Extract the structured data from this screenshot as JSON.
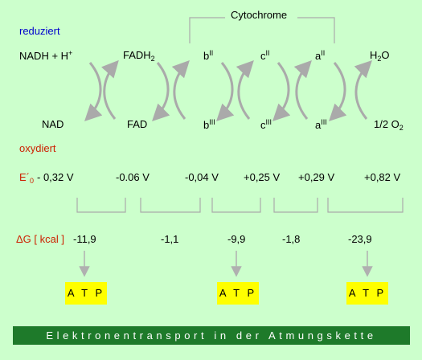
{
  "labels": {
    "cytochrome": "Cytochrome",
    "reduced": "reduziert",
    "oxidized": "oxydiert",
    "caption": "Elektronentransport in der Atmungskette"
  },
  "species_top": {
    "nadh": "NADH + H",
    "nadh_sup": "+",
    "fadh": "FADH",
    "fadh_sub": "2",
    "b": "b",
    "b_sup": "II",
    "c": "c",
    "c_sup": "II",
    "a": "a",
    "a_sup": "II",
    "water": "H",
    "water_sub": "2",
    "water_end": "O"
  },
  "species_bottom": {
    "nad": "NAD",
    "fad": "FAD",
    "b": "b",
    "b_sup": "III",
    "c": "c",
    "c_sup": "III",
    "a": "a",
    "a_sup": "III",
    "oxygen": "1/2 O",
    "oxygen_sub": "2"
  },
  "potentials": {
    "label_main": "E´",
    "label_sub": "0",
    "values": [
      "- 0,32 V",
      "-0.06 V",
      "-0,04 V",
      "+0,25 V",
      "+0,29 V",
      "+0,82 V"
    ]
  },
  "free_energy": {
    "label": "ΔG [ kcal ]",
    "values": [
      "-11,9",
      "-1,1",
      "-9,9",
      "-1,8",
      "-23,9"
    ]
  },
  "atp": [
    "A T P",
    "A T P",
    "A T P"
  ],
  "colors": {
    "background": "#ccffcc",
    "reduced_label": "#0000cc",
    "oxidized_label": "#cc2200",
    "atp_box": "#ffff00",
    "caption_bar": "#1e7a2a",
    "arrows": "#aaaaaa"
  }
}
